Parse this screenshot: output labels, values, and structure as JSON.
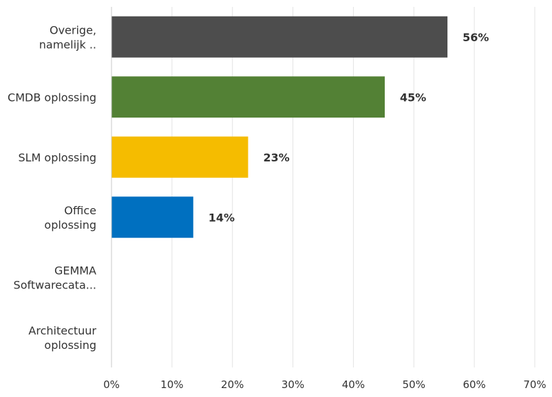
{
  "chart_data": {
    "type": "bar",
    "orientation": "horizontal",
    "categories": [
      [
        "Overige,",
        "namelijk .."
      ],
      [
        "CMDB oplossing"
      ],
      [
        "SLM oplossing"
      ],
      [
        "Office",
        "oplossing"
      ],
      [
        "GEMMA",
        "Softwarecata..."
      ],
      [
        "Architectuur",
        "oplossing"
      ]
    ],
    "values": [
      55.56,
      45.19,
      22.59,
      13.52,
      0,
      0
    ],
    "data_labels": [
      "56%",
      "45%",
      "23%",
      "14%",
      "",
      ""
    ],
    "colors": [
      "#4d4d4d",
      "#538135",
      "#f5bc00",
      "#0070c0",
      "#999999",
      "#999999"
    ],
    "xlim": [
      0,
      70
    ],
    "xticks": [
      0,
      10,
      20,
      30,
      40,
      50,
      60,
      70
    ],
    "xtick_labels": [
      "0%",
      "10%",
      "20%",
      "30%",
      "40%",
      "50%",
      "60%",
      "70%"
    ],
    "grid": true,
    "legend": "none"
  }
}
